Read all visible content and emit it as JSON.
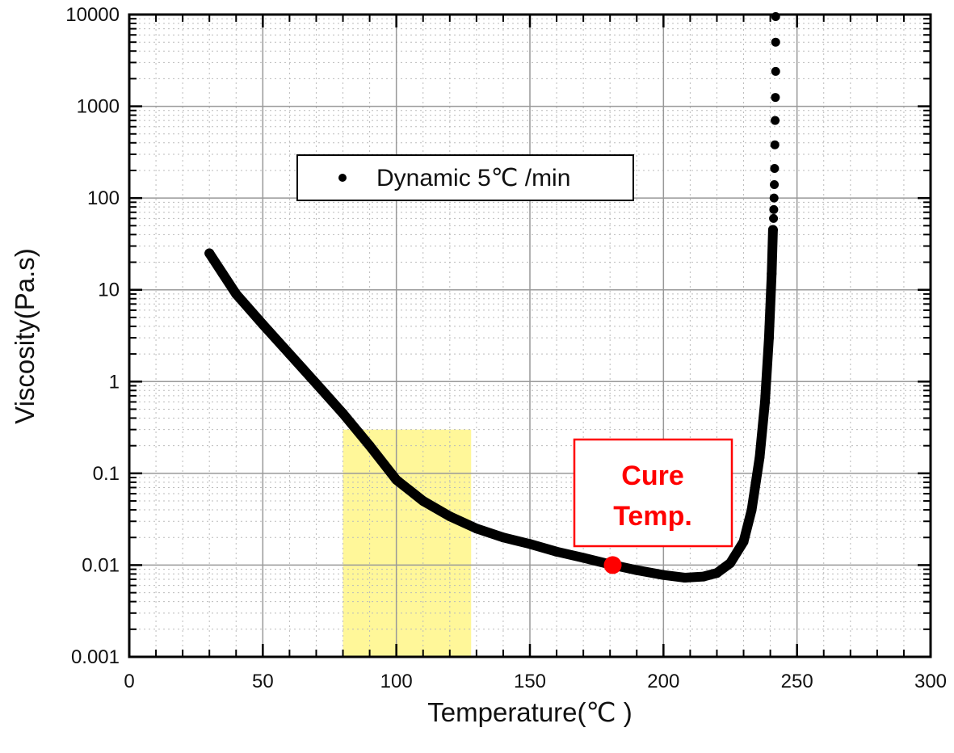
{
  "chart_data": {
    "type": "scatter",
    "title": "",
    "xlabel": "Temperature(℃ )",
    "ylabel": "Viscosity(Pa.s)",
    "xlim": [
      0,
      300
    ],
    "ylim": [
      0.001,
      10000
    ],
    "yscale": "log",
    "grid": true,
    "minor_grid": true,
    "x_ticks": [
      0,
      50,
      100,
      150,
      200,
      250,
      300
    ],
    "x_tick_labels": [
      "0",
      "50",
      "100",
      "150",
      "200",
      "250",
      "300"
    ],
    "y_ticks": [
      0.001,
      0.01,
      0.1,
      1,
      10,
      100,
      1000,
      10000
    ],
    "y_tick_labels": [
      "0.001",
      "0.01",
      "0.1",
      "1",
      "10",
      "100",
      "1000",
      "10000"
    ],
    "legend": {
      "placement": "upper-left",
      "entries": [
        "Dynamic 5℃ /min"
      ]
    },
    "series": [
      {
        "name": "Dynamic 5℃ /min",
        "color": "#000000",
        "points": [
          [
            30,
            25
          ],
          [
            35,
            15
          ],
          [
            40,
            9
          ],
          [
            50,
            4.2
          ],
          [
            60,
            2.0
          ],
          [
            70,
            0.95
          ],
          [
            80,
            0.45
          ],
          [
            90,
            0.2
          ],
          [
            100,
            0.085
          ],
          [
            110,
            0.05
          ],
          [
            120,
            0.034
          ],
          [
            130,
            0.025
          ],
          [
            140,
            0.02
          ],
          [
            150,
            0.017
          ],
          [
            160,
            0.014
          ],
          [
            170,
            0.012
          ],
          [
            180,
            0.0102
          ],
          [
            190,
            0.0088
          ],
          [
            200,
            0.0078
          ],
          [
            208,
            0.0073
          ],
          [
            215,
            0.0075
          ],
          [
            220,
            0.0082
          ],
          [
            225,
            0.0105
          ],
          [
            230,
            0.018
          ],
          [
            233,
            0.04
          ],
          [
            236,
            0.15
          ],
          [
            238,
            0.6
          ],
          [
            239.5,
            3
          ],
          [
            240.5,
            15
          ],
          [
            241,
            45
          ]
        ],
        "sparse_points": [
          [
            241.2,
            60
          ],
          [
            241.3,
            75
          ],
          [
            241.4,
            100
          ],
          [
            241.5,
            140
          ],
          [
            241.6,
            210
          ],
          [
            241.7,
            380
          ],
          [
            241.8,
            700
          ],
          [
            241.9,
            1250
          ],
          [
            242,
            2400
          ],
          [
            242,
            5000
          ],
          [
            242,
            9500
          ]
        ]
      }
    ],
    "annotations": [
      {
        "type": "highlight-region",
        "x_range": [
          80,
          128
        ],
        "y_range": [
          0.001,
          0.3
        ],
        "color": "#fff799"
      },
      {
        "type": "marker",
        "x": 181,
        "y": 0.01,
        "color": "#ff0000"
      },
      {
        "type": "text-box",
        "text_lines": [
          "Cure",
          "Temp."
        ],
        "color": "#ff0000"
      }
    ]
  }
}
